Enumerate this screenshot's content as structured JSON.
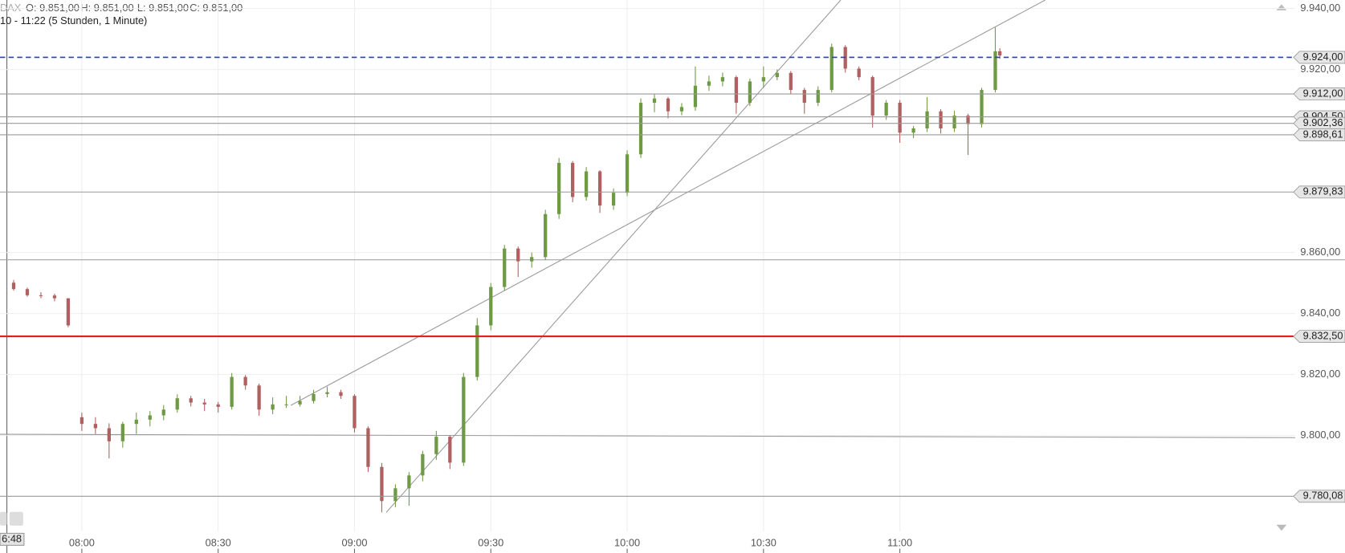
{
  "chart_data": {
    "type": "candlestick",
    "symbol": "DAX",
    "ohlc_labels": [
      "O: 9.851,00",
      "H: 9.851,00",
      "L: 9.851,00",
      "C: 9.851,00"
    ],
    "range_label": "10 - 11:22 (5 Stunden, 1 Minute)",
    "cursor_label": "6:48",
    "up_color": "#6f9a45",
    "down_color": "#b06060",
    "x": [
      "07:45",
      "07:48",
      "07:51",
      "07:54",
      "07:57",
      "08:00",
      "08:03",
      "08:06",
      "08:09",
      "08:12",
      "08:15",
      "08:18",
      "08:21",
      "08:24",
      "08:27",
      "08:30",
      "08:33",
      "08:36",
      "08:39",
      "08:42",
      "08:45",
      "08:48",
      "08:51",
      "08:54",
      "08:57",
      "09:00",
      "09:03",
      "09:06",
      "09:09",
      "09:12",
      "09:15",
      "09:18",
      "09:21",
      "09:24",
      "09:27",
      "09:30",
      "09:33",
      "09:36",
      "09:39",
      "09:42",
      "09:45",
      "09:48",
      "09:51",
      "09:54",
      "09:57",
      "10:00",
      "10:03",
      "10:06",
      "10:09",
      "10:12",
      "10:15",
      "10:18",
      "10:21",
      "10:24",
      "10:27",
      "10:30",
      "10:33",
      "10:36",
      "10:39",
      "10:42",
      "10:45",
      "10:48",
      "10:51",
      "10:54",
      "10:57",
      "11:00",
      "11:03",
      "11:06",
      "11:09",
      "11:12",
      "11:15",
      "11:18",
      "11:21",
      "11:22"
    ],
    "open": [
      9850.1,
      9848.0,
      9846.0,
      9845.9,
      9845.0,
      9806.0,
      9803.8,
      9802.4,
      9798.1,
      9803.8,
      9805.2,
      9806.6,
      9808.5,
      9812.2,
      9810.8,
      9810.2,
      9809.4,
      9819.2,
      9816.4,
      9808.5,
      9810.2,
      9810.2,
      9811.3,
      9813.6,
      9814.2,
      9813.0,
      9802.4,
      9789.7,
      9778.5,
      9782.7,
      9786.9,
      9793.9,
      9799.6,
      9791.1,
      9819.2,
      9836.1,
      9848.7,
      9861.3,
      9857.1,
      9858.5,
      9872.6,
      9889.4,
      9878.2,
      9886.6,
      9875.4,
      9879.6,
      9892.2,
      9909.1,
      9910.5,
      9906.3,
      9907.7,
      9914.7,
      9916.1,
      9917.5,
      9909.1,
      9916.1,
      9917.5,
      9918.9,
      9913.3,
      9909.1,
      9913.3,
      9927.4,
      9920.3,
      9917.5,
      9904.9,
      9909.1,
      9899.3,
      9900.7,
      9906.3,
      9900.7,
      9904.9,
      9902.1,
      9913.3,
      9926.0
    ],
    "high": [
      9851.0,
      9848.5,
      9847.0,
      9846.5,
      9845.0,
      9807.5,
      9806.0,
      9804.0,
      9804.5,
      9807.5,
      9808.0,
      9810.0,
      9813.5,
      9813.0,
      9812.0,
      9811.0,
      9820.5,
      9819.8,
      9817.0,
      9812.5,
      9813.0,
      9813.0,
      9815.0,
      9816.0,
      9815.0,
      9813.5,
      9803.0,
      9791.0,
      9784.0,
      9788.0,
      9795.0,
      9801.5,
      9800.0,
      9820.5,
      9838.5,
      9850.0,
      9862.5,
      9862.0,
      9860.0,
      9874.0,
      9891.0,
      9890.0,
      9888.0,
      9887.0,
      9881.0,
      9893.5,
      9910.5,
      9912.0,
      9911.0,
      9909.0,
      9921.0,
      9918.0,
      9919.0,
      9918.0,
      9917.0,
      9921.0,
      9920.0,
      9919.5,
      9914.0,
      9914.5,
      9928.5,
      9928.0,
      9921.0,
      9918.0,
      9910.0,
      9910.0,
      9901.5,
      9911.0,
      9907.0,
      9906.5,
      9905.5,
      9914.0,
      9933.8,
      9927.0
    ],
    "low": [
      9847.5,
      9845.5,
      9845.0,
      9844.0,
      9835.5,
      9801.5,
      9800.5,
      9792.5,
      9796.0,
      9800.5,
      9803.0,
      9805.0,
      9807.5,
      9809.5,
      9808.0,
      9807.5,
      9808.5,
      9815.0,
      9806.5,
      9807.0,
      9809.0,
      9809.5,
      9810.5,
      9812.5,
      9812.0,
      9801.0,
      9788.0,
      9774.8,
      9776.5,
      9777.0,
      9785.0,
      9792.0,
      9789.0,
      9790.0,
      9818.0,
      9834.5,
      9847.5,
      9852.0,
      9855.0,
      9857.5,
      9871.0,
      9876.5,
      9877.0,
      9873.0,
      9874.0,
      9878.5,
      9891.0,
      9906.0,
      9904.0,
      9905.0,
      9906.5,
      9913.0,
      9914.5,
      9905.5,
      9908.0,
      9914.0,
      9916.5,
      9912.0,
      9905.5,
      9908.0,
      9912.5,
      9919.0,
      9916.5,
      9901.0,
      9903.5,
      9896.0,
      9897.5,
      9899.5,
      9899.0,
      9899.5,
      9892.0,
      9901.0,
      9912.5,
      9923.5
    ],
    "close": [
      9848.0,
      9846.0,
      9845.9,
      9845.0,
      9836.1,
      9803.8,
      9802.4,
      9798.1,
      9803.8,
      9805.2,
      9806.6,
      9808.5,
      9812.2,
      9810.8,
      9810.2,
      9809.4,
      9819.2,
      9816.4,
      9808.5,
      9810.2,
      9810.2,
      9811.3,
      9813.6,
      9814.2,
      9813.0,
      9802.4,
      9789.7,
      9778.5,
      9782.7,
      9786.9,
      9793.9,
      9799.6,
      9791.1,
      9819.2,
      9836.1,
      9848.7,
      9861.3,
      9857.1,
      9858.5,
      9872.6,
      9889.4,
      9878.2,
      9886.6,
      9875.4,
      9879.6,
      9892.2,
      9909.1,
      9910.5,
      9906.3,
      9907.7,
      9914.7,
      9916.1,
      9917.5,
      9909.1,
      9916.1,
      9917.5,
      9918.9,
      9913.3,
      9909.1,
      9913.3,
      9927.4,
      9920.3,
      9917.5,
      9904.9,
      9909.1,
      9899.3,
      9900.7,
      9906.3,
      9900.7,
      9904.9,
      9902.1,
      9913.3,
      9926.0,
      9924.6
    ],
    "xlim": [
      "07:42",
      "12:27"
    ],
    "xticks": [
      "08:00",
      "08:30",
      "09:00",
      "09:30",
      "10:00",
      "10:30",
      "11:00"
    ],
    "ylim": [
      9768.5,
      9942.8
    ],
    "yticks": [
      {
        "value": 9940,
        "label": "9.940,00"
      },
      {
        "value": 9920,
        "label": "9.920,00"
      },
      {
        "value": 9860,
        "label": "9.860,00"
      },
      {
        "value": 9840,
        "label": "9.840,00"
      },
      {
        "value": 9820,
        "label": "9.820,00"
      },
      {
        "value": 9800,
        "label": "9.800,00"
      }
    ],
    "grid": true,
    "levels": [
      {
        "value": 9924,
        "label": "9.924,00",
        "color": "#1f3fd0",
        "style": "dashed"
      },
      {
        "value": 9912,
        "label": "9.912,00",
        "color": "#999999",
        "style": "solid"
      },
      {
        "value": 9904.5,
        "label": "9.904,50",
        "color": "#999999",
        "style": "solid"
      },
      {
        "value": 9902.36,
        "label": "9.902,36",
        "color": "#999999",
        "style": "solid"
      },
      {
        "value": 9898.61,
        "label": "9.898,61",
        "color": "#999999",
        "style": "solid"
      },
      {
        "value": 9879.83,
        "label": "9.879,83",
        "color": "#999999",
        "style": "solid"
      },
      {
        "value": 9832.5,
        "label": "9.832,50",
        "color": "#e02020",
        "style": "bold"
      },
      {
        "value": 9780.08,
        "label": "9.780,08",
        "color": "#999999",
        "style": "solid"
      }
    ],
    "plain_levels": [
      9857.6
    ],
    "trendlines": [
      {
        "x": [
          "09:07",
          "10:47"
        ],
        "y": [
          9774.8,
          9942.8
        ]
      },
      {
        "x": [
          "08:46",
          "11:32"
        ],
        "y": [
          9809.9,
          9942.8
        ]
      },
      {
        "x": [
          "07:42",
          "12:27"
        ],
        "y": [
          9800.4,
          9799.3
        ]
      }
    ]
  }
}
